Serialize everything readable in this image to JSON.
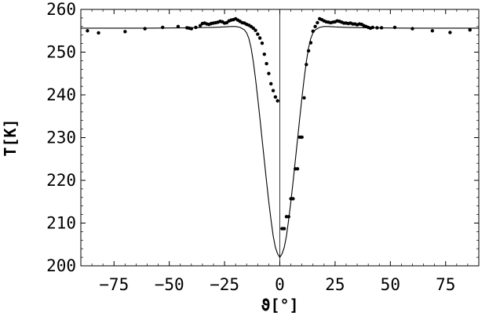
{
  "chart_data": {
    "type": "scatter",
    "title": "",
    "xlabel": "ϑ[°]",
    "ylabel": "T[K]",
    "xlim": [
      -90,
      90
    ],
    "ylim": [
      200,
      260
    ],
    "x_ticks": [
      -75,
      -50,
      -25,
      0,
      25,
      50,
      75
    ],
    "x_tick_labels": [
      "−75",
      "−50",
      "−25",
      "0",
      "25",
      "50",
      "75"
    ],
    "y_ticks": [
      200,
      210,
      220,
      230,
      240,
      250,
      260
    ],
    "y_tick_labels": [
      "200",
      "210",
      "220",
      "230",
      "240",
      "250",
      "260"
    ],
    "grid": false,
    "frame": true,
    "vertical_reference_line_x": 0,
    "series": [
      {
        "kind": "points",
        "x": [
          -87,
          -82,
          -70,
          -61,
          -53,
          -46,
          -42,
          -41,
          -40,
          -38,
          -36,
          -35,
          -34,
          -33,
          -32,
          -31,
          -30,
          -29,
          -28,
          -27,
          -26,
          -25,
          -24,
          -23,
          -22,
          -21,
          -20,
          -19,
          -18,
          -17,
          -16,
          -15,
          -14,
          -13,
          -12,
          -11,
          -10,
          -9,
          -8,
          -7,
          -6,
          -5,
          -4,
          -3,
          -2,
          -1,
          1,
          2,
          3,
          4,
          5,
          6,
          7,
          8,
          9,
          10,
          11,
          12,
          13,
          14,
          15,
          16,
          17,
          18,
          19,
          20,
          21,
          22,
          23,
          24,
          25,
          26,
          27,
          28,
          29,
          30,
          31,
          32,
          33,
          34,
          35,
          36,
          37,
          38,
          39,
          40,
          41,
          42,
          44,
          46,
          52,
          60,
          69,
          77,
          86
        ],
        "y": [
          255.0,
          254.5,
          254.8,
          255.5,
          255.8,
          256.0,
          255.7,
          255.6,
          255.5,
          255.8,
          256.2,
          256.7,
          256.8,
          256.6,
          256.5,
          256.7,
          256.8,
          256.9,
          257.0,
          257.2,
          257.1,
          256.8,
          256.9,
          257.3,
          257.5,
          257.6,
          257.8,
          257.5,
          257.2,
          256.9,
          256.8,
          256.5,
          256.3,
          256.0,
          255.6,
          255.1,
          254.2,
          253.3,
          252.1,
          249.5,
          247.3,
          245.0,
          242.6,
          241.0,
          239.5,
          238.6,
          208.7,
          208.7,
          211.5,
          211.5,
          215.7,
          215.7,
          222.7,
          222.7,
          230.1,
          230.1,
          239.3,
          247.1,
          250.3,
          252.2,
          254.9,
          256.0,
          256.9,
          257.8,
          257.6,
          257.3,
          257.1,
          257.0,
          256.9,
          257.0,
          257.1,
          257.3,
          257.2,
          257.0,
          256.8,
          256.8,
          256.7,
          256.8,
          256.6,
          256.6,
          256.4,
          256.6,
          256.5,
          256.2,
          256.0,
          255.8,
          255.6,
          255.8,
          255.7,
          255.7,
          255.8,
          255.5,
          255.0,
          254.6,
          255.2
        ]
      },
      {
        "kind": "line",
        "x": [
          -90,
          -60,
          -40,
          -30,
          -25,
          -22,
          -20,
          -18,
          -16,
          -15,
          -14,
          -13,
          -12,
          -11,
          -10,
          -9,
          -8,
          -7,
          -6,
          -5,
          -4,
          -3,
          -2,
          -1,
          0,
          1,
          2,
          3,
          4,
          5,
          6,
          7,
          8,
          9,
          10,
          11,
          12,
          13,
          14,
          15,
          16,
          18,
          20,
          22,
          25,
          30,
          40,
          60,
          90
        ],
        "y": [
          255.6,
          255.6,
          255.7,
          255.8,
          255.9,
          256.0,
          256.0,
          255.8,
          255.2,
          254.5,
          253.2,
          251.0,
          247.8,
          243.8,
          239.3,
          234.5,
          229.5,
          224.6,
          219.7,
          215.0,
          210.8,
          207.0,
          204.3,
          202.8,
          202.0,
          202.8,
          204.3,
          207.0,
          210.8,
          215.0,
          219.7,
          224.6,
          229.5,
          234.5,
          239.3,
          243.8,
          247.8,
          251.0,
          253.2,
          254.5,
          255.2,
          255.8,
          256.0,
          256.0,
          255.9,
          255.8,
          255.7,
          255.6,
          255.6
        ]
      }
    ]
  }
}
